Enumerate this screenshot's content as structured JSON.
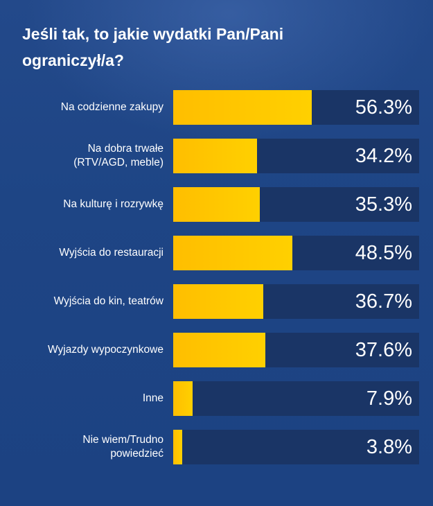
{
  "title": "Jeśli tak, to jakie wydatki Pan/Pani ograniczył/a?",
  "colors": {
    "background": "#1f4788",
    "track": "#1a3566",
    "bar_start": "#ffbe00",
    "bar_end": "#ffd000",
    "text": "#ffffff"
  },
  "chart_data": {
    "type": "bar",
    "orientation": "horizontal",
    "title": "Jeśli tak, to jakie wydatki Pan/Pani ograniczył/a?",
    "categories": [
      "Na codzienne zakupy",
      "Na dobra trwałe\n(RTV/AGD, meble)",
      "Na kulturę i rozrywkę",
      "Wyjścia do restauracji",
      "Wyjścia do kin, teatrów",
      "Wyjazdy wypoczynkowe",
      "Inne",
      "Nie wiem/Trudno\npowiedzieć"
    ],
    "values": [
      56.3,
      34.2,
      35.3,
      48.5,
      36.7,
      37.6,
      7.9,
      3.8
    ],
    "value_labels": [
      "56.3%",
      "34.2%",
      "35.3%",
      "48.5%",
      "36.7%",
      "37.6%",
      "7.9%",
      "3.8%"
    ],
    "xlim": [
      0,
      100
    ],
    "grid": false,
    "legend": "none"
  }
}
